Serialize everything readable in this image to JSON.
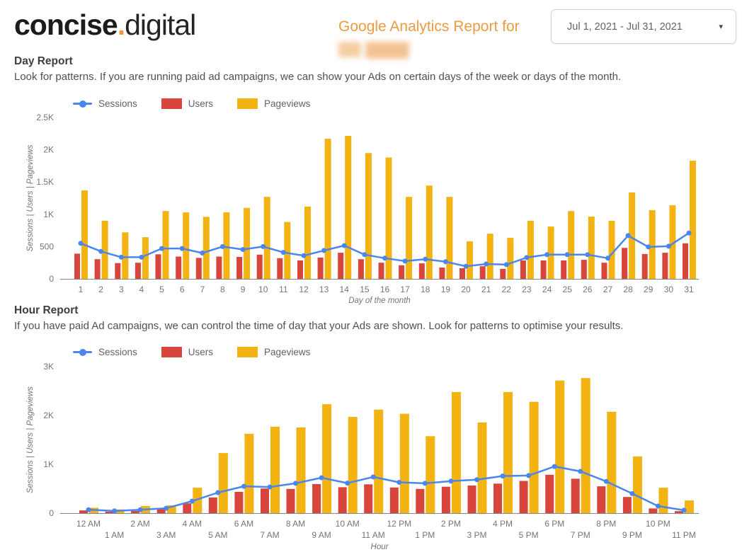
{
  "header": {
    "logo_bold": "concise",
    "logo_dot": ".",
    "logo_light": "digital",
    "report_title": "Google Analytics Report for",
    "client_name": "[redacted]",
    "date_range": "Jul 1, 2021 - Jul 31, 2021",
    "caret": "▾"
  },
  "day_report": {
    "heading": "Day Report",
    "description": "Look for patterns. If you are running paid ad campaigns, we can show your Ads on certain days of the week or days of the month."
  },
  "hour_report": {
    "heading": "Hour Report",
    "description": "If you have paid Ad campaigns, we can control the time of day that your Ads are shown. Look for patterns to optimise your results."
  },
  "colors": {
    "sessions": "#4a86ee",
    "users": "#d7453c",
    "pageviews": "#f2b313",
    "accent_orange": "#ed9a3f"
  },
  "chart_data": [
    {
      "type": "bar+line",
      "title": "Day Report",
      "xlabel": "Day of the month",
      "ylabel": "Sessions  |  Users  |  Pageviews",
      "ylim": [
        0,
        2500
      ],
      "ytick_values": [
        0,
        500,
        1000,
        1500,
        2000,
        2500
      ],
      "ytick_labels": [
        "0",
        "500",
        "1K",
        "1.5K",
        "2K",
        "2.5K"
      ],
      "grid": false,
      "legend_position": "top-left",
      "categories": [
        "1",
        "2",
        "3",
        "4",
        "5",
        "6",
        "7",
        "8",
        "9",
        "10",
        "11",
        "12",
        "13",
        "14",
        "15",
        "16",
        "17",
        "18",
        "19",
        "20",
        "21",
        "22",
        "23",
        "24",
        "25",
        "26",
        "27",
        "28",
        "29",
        "30",
        "31"
      ],
      "series": [
        {
          "name": "Sessions",
          "type": "line",
          "color": "#4a86ee",
          "values": [
            550,
            425,
            335,
            335,
            470,
            470,
            400,
            500,
            455,
            500,
            410,
            360,
            440,
            515,
            375,
            320,
            275,
            305,
            265,
            195,
            230,
            220,
            330,
            375,
            375,
            375,
            320,
            670,
            495,
            505,
            710
          ]
        },
        {
          "name": "Users",
          "type": "bar",
          "color": "#d7453c",
          "values": [
            390,
            305,
            245,
            250,
            380,
            345,
            325,
            345,
            340,
            375,
            320,
            285,
            330,
            405,
            305,
            250,
            210,
            240,
            175,
            165,
            195,
            155,
            285,
            285,
            285,
            295,
            250,
            480,
            385,
            405,
            550
          ]
        },
        {
          "name": "Pageviews",
          "type": "bar",
          "color": "#f2b313",
          "values": [
            1370,
            900,
            720,
            645,
            1050,
            1030,
            960,
            1030,
            1100,
            1270,
            880,
            1120,
            2170,
            2215,
            1950,
            1880,
            1270,
            1445,
            1270,
            580,
            700,
            635,
            900,
            810,
            1050,
            965,
            900,
            1340,
            1065,
            1140,
            1830
          ]
        }
      ]
    },
    {
      "type": "bar+line",
      "title": "Hour Report",
      "xlabel": "Hour",
      "ylabel": "Sessions  |  Users  |  Pageviews",
      "ylim": [
        0,
        3000
      ],
      "ytick_values": [
        0,
        1000,
        2000,
        3000
      ],
      "ytick_labels": [
        "0",
        "1K",
        "2K",
        "3K"
      ],
      "grid": false,
      "legend_position": "top-left",
      "categories": [
        "12 AM",
        "1 AM",
        "2 AM",
        "3 AM",
        "4 AM",
        "5 AM",
        "6 AM",
        "7 AM",
        "8 AM",
        "9 AM",
        "10 AM",
        "11 AM",
        "12 PM",
        "1 PM",
        "2 PM",
        "3 PM",
        "4 PM",
        "5 PM",
        "6 PM",
        "7 PM",
        "8 PM",
        "9 PM",
        "10 PM",
        "11 PM"
      ],
      "series": [
        {
          "name": "Sessions",
          "type": "line",
          "color": "#4a86ee",
          "values": [
            70,
            45,
            70,
            100,
            245,
            420,
            550,
            535,
            610,
            725,
            615,
            740,
            630,
            610,
            655,
            685,
            760,
            770,
            955,
            855,
            650,
            400,
            145,
            60
          ]
        },
        {
          "name": "Users",
          "type": "bar",
          "color": "#d7453c",
          "values": [
            55,
            30,
            45,
            80,
            200,
            320,
            435,
            505,
            495,
            595,
            530,
            590,
            525,
            495,
            540,
            565,
            605,
            660,
            785,
            705,
            550,
            330,
            95,
            40
          ]
        },
        {
          "name": "Pageviews",
          "type": "bar",
          "color": "#f2b313",
          "values": [
            110,
            75,
            145,
            160,
            520,
            1230,
            1625,
            1770,
            1755,
            2230,
            1970,
            2120,
            2035,
            1575,
            2480,
            1855,
            2480,
            2280,
            2715,
            2765,
            2075,
            1160,
            520,
            260
          ]
        }
      ]
    }
  ]
}
